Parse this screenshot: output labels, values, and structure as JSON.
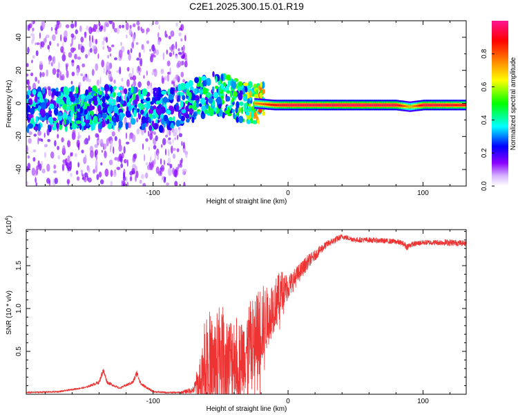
{
  "figure": {
    "title": "C2E1.2025.300.15.01.R19"
  },
  "colors": {
    "snr_line": "#ee3333",
    "spectrogram_background": "#ffffff",
    "colormap": [
      "#ffffff",
      "#8b00ff",
      "#0000ff",
      "#00ffff",
      "#00ff00",
      "#ffff00",
      "#ff8000",
      "#ff0000",
      "#ff1493"
    ]
  },
  "chart_data": [
    {
      "type": "heatmap",
      "title": "C2E1.2025.300.15.01.R19",
      "xlabel": "Height of straight line (km)",
      "ylabel": "Frequency (Hz)",
      "xlim": [
        -194,
        132
      ],
      "ylim": [
        -50,
        50
      ],
      "x_ticks": [
        -100,
        0,
        100
      ],
      "x_tick_labels": [
        "-100",
        "0",
        "100"
      ],
      "y_ticks": [
        -40,
        -20,
        0,
        20,
        40
      ],
      "y_tick_labels": [
        "-40",
        "-20",
        "0",
        "20",
        "40"
      ],
      "colorbar": {
        "label": "Normalized spectral amplitude",
        "range": [
          0.0,
          1.0
        ],
        "ticks": [
          0.0,
          0.2,
          0.4,
          0.6,
          0.8
        ],
        "tick_labels": [
          "0.0",
          "0.2",
          "0.4",
          "0.6",
          "0.8"
        ]
      },
      "ridge": {
        "x": [
          -194,
          -160,
          -120,
          -90,
          -70,
          -55,
          -45,
          -35,
          -25,
          -10,
          0,
          20,
          50,
          80,
          90,
          100,
          132
        ],
        "center_freq": [
          -4,
          -3,
          -2,
          -4,
          2,
          6,
          4,
          1,
          0,
          -1,
          -1,
          -1,
          -1,
          -1,
          -2,
          -1,
          -1
        ],
        "peak_amplitude": [
          0.4,
          0.45,
          0.45,
          0.4,
          0.45,
          0.5,
          0.5,
          0.55,
          0.75,
          0.9,
          0.95,
          0.95,
          0.97,
          0.95,
          0.7,
          0.95,
          0.9
        ]
      },
      "grid": false
    },
    {
      "type": "line",
      "xlabel": "Height of straight line (km)",
      "ylabel": "SNR (10 * v/v)",
      "y_multiplier_label": "(x10",
      "y_multiplier_exp": "4",
      "y_multiplier_close": ")",
      "xlim": [
        -194,
        132
      ],
      "ylim": [
        0,
        1.92
      ],
      "x_ticks": [
        -100,
        0,
        100
      ],
      "x_tick_labels": [
        "-100",
        "0",
        "100"
      ],
      "y_ticks": [
        0.5,
        1.0,
        1.5
      ],
      "y_tick_labels": [
        "0.5",
        "1.0",
        "1.5"
      ],
      "series": [
        {
          "color": "#ee3333",
          "x": [
            -194,
            -170,
            -150,
            -140,
            -137,
            -134,
            -125,
            -115,
            -112,
            -109,
            -100,
            -90,
            -80,
            -70,
            -65,
            -60,
            -55,
            -50,
            -45,
            -40,
            -35,
            -30,
            -25,
            -20,
            -15,
            -10,
            -5,
            0,
            5,
            10,
            15,
            20,
            25,
            30,
            35,
            40,
            45,
            50,
            60,
            70,
            80,
            85,
            88,
            92,
            100,
            110,
            120,
            132
          ],
          "y": [
            0.02,
            0.03,
            0.08,
            0.14,
            0.28,
            0.14,
            0.07,
            0.14,
            0.25,
            0.12,
            0.03,
            0.02,
            0.02,
            0.05,
            0.2,
            0.45,
            0.35,
            0.5,
            0.4,
            0.45,
            0.4,
            0.55,
            0.6,
            0.8,
            0.9,
            1.05,
            1.2,
            1.25,
            1.35,
            1.45,
            1.55,
            1.62,
            1.7,
            1.76,
            1.8,
            1.84,
            1.82,
            1.8,
            1.8,
            1.79,
            1.78,
            1.76,
            1.72,
            1.75,
            1.77,
            1.77,
            1.77,
            1.76
          ],
          "noise_amplitude": [
            0.01,
            0.01,
            0.01,
            0.02,
            0.04,
            0.02,
            0.01,
            0.02,
            0.04,
            0.02,
            0.01,
            0.01,
            0.01,
            0.04,
            0.3,
            0.6,
            0.5,
            0.6,
            0.5,
            0.5,
            0.45,
            0.5,
            0.55,
            0.5,
            0.35,
            0.3,
            0.25,
            0.15,
            0.12,
            0.1,
            0.08,
            0.06,
            0.05,
            0.04,
            0.04,
            0.03,
            0.03,
            0.03,
            0.03,
            0.03,
            0.03,
            0.03,
            0.04,
            0.03,
            0.03,
            0.03,
            0.04,
            0.03
          ]
        }
      ],
      "grid": false
    }
  ]
}
